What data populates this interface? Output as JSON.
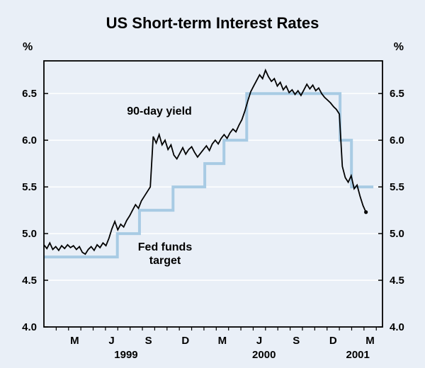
{
  "chart_data": {
    "type": "line",
    "title": "US Short-term Interest Rates",
    "y_unit": "%",
    "ylim": [
      4.0,
      6.85
    ],
    "yticks": [
      4.0,
      4.5,
      5.0,
      5.5,
      6.0,
      6.5
    ],
    "xlim": [
      1999.0,
      2001.292
    ],
    "grid": true,
    "legend_position": "inline-annotations",
    "colors": {
      "background": "#e9eff7",
      "gridline": "#ffffff",
      "axis": "#000000"
    },
    "xticks": [
      {
        "label": "M",
        "x": 1999.208
      },
      {
        "label": "J",
        "x": 1999.458
      },
      {
        "label": "S",
        "x": 1999.708
      },
      {
        "label": "D",
        "x": 1999.958
      },
      {
        "label": "M",
        "x": 2000.208
      },
      {
        "label": "J",
        "x": 2000.458
      },
      {
        "label": "S",
        "x": 2000.708
      },
      {
        "label": "D",
        "x": 2000.958
      },
      {
        "label": "M",
        "x": 2001.208
      }
    ],
    "year_labels": [
      {
        "label": "1999",
        "x": 1999.556
      },
      {
        "label": "2000",
        "x": 2000.49
      },
      {
        "label": "2001",
        "x": 2001.125
      }
    ],
    "series": [
      {
        "name": "Fed funds target",
        "type": "step",
        "color": "#a8cbe4",
        "width": 4,
        "x": [
          1999.0,
          1999.497,
          1999.647,
          1999.874,
          2000.089,
          2000.219,
          2000.373,
          2001.005,
          2001.082
        ],
        "y": [
          4.75,
          5.0,
          5.25,
          5.5,
          5.75,
          6.0,
          6.5,
          6.0,
          5.5
        ],
        "x_end": 2001.23
      },
      {
        "name": "90-day yield",
        "type": "line",
        "color": "#000000",
        "width": 1.8,
        "end_dot": true,
        "x": [
          1999.0,
          1999.02,
          1999.04,
          1999.06,
          1999.08,
          1999.1,
          1999.12,
          1999.14,
          1999.16,
          1999.18,
          1999.2,
          1999.22,
          1999.24,
          1999.26,
          1999.28,
          1999.3,
          1999.32,
          1999.34,
          1999.36,
          1999.38,
          1999.4,
          1999.42,
          1999.44,
          1999.46,
          1999.48,
          1999.5,
          1999.52,
          1999.54,
          1999.56,
          1999.58,
          1999.6,
          1999.62,
          1999.64,
          1999.66,
          1999.68,
          1999.7,
          1999.72,
          1999.74,
          1999.76,
          1999.78,
          1999.8,
          1999.82,
          1999.84,
          1999.86,
          1999.88,
          1999.9,
          1999.92,
          1999.94,
          1999.96,
          1999.98,
          2000.0,
          2000.02,
          2000.04,
          2000.06,
          2000.08,
          2000.1,
          2000.12,
          2000.14,
          2000.16,
          2000.18,
          2000.2,
          2000.22,
          2000.24,
          2000.26,
          2000.28,
          2000.3,
          2000.32,
          2000.34,
          2000.36,
          2000.38,
          2000.4,
          2000.42,
          2000.44,
          2000.46,
          2000.48,
          2000.5,
          2000.52,
          2000.54,
          2000.56,
          2000.58,
          2000.6,
          2000.62,
          2000.64,
          2000.66,
          2000.68,
          2000.7,
          2000.72,
          2000.74,
          2000.76,
          2000.78,
          2000.8,
          2000.82,
          2000.84,
          2000.86,
          2000.88,
          2000.9,
          2000.92,
          2000.94,
          2000.96,
          2000.98,
          2001.0,
          2001.02,
          2001.04,
          2001.06,
          2001.08,
          2001.1,
          2001.12,
          2001.14,
          2001.16,
          2001.18
        ],
        "y": [
          4.88,
          4.84,
          4.9,
          4.83,
          4.86,
          4.82,
          4.87,
          4.84,
          4.88,
          4.85,
          4.87,
          4.83,
          4.86,
          4.8,
          4.78,
          4.83,
          4.86,
          4.82,
          4.88,
          4.85,
          4.9,
          4.87,
          4.95,
          5.05,
          5.13,
          5.04,
          5.1,
          5.07,
          5.14,
          5.19,
          5.25,
          5.31,
          5.27,
          5.35,
          5.4,
          5.45,
          5.5,
          6.04,
          5.97,
          6.06,
          5.95,
          6.0,
          5.9,
          5.95,
          5.84,
          5.8,
          5.86,
          5.92,
          5.85,
          5.9,
          5.93,
          5.87,
          5.82,
          5.86,
          5.9,
          5.94,
          5.89,
          5.96,
          6.0,
          5.96,
          6.02,
          6.06,
          6.02,
          6.08,
          6.12,
          6.09,
          6.16,
          6.22,
          6.31,
          6.42,
          6.52,
          6.58,
          6.64,
          6.7,
          6.66,
          6.75,
          6.68,
          6.63,
          6.66,
          6.58,
          6.62,
          6.54,
          6.58,
          6.51,
          6.54,
          6.49,
          6.53,
          6.48,
          6.54,
          6.6,
          6.55,
          6.59,
          6.53,
          6.56,
          6.5,
          6.46,
          6.43,
          6.4,
          6.36,
          6.33,
          6.28,
          5.72,
          5.6,
          5.55,
          5.62,
          5.48,
          5.52,
          5.4,
          5.3,
          5.23
        ]
      }
    ]
  }
}
